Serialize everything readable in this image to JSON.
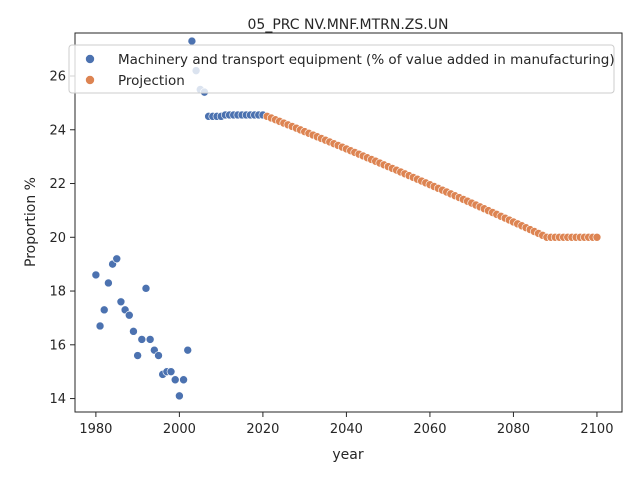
{
  "chart_data": {
    "type": "scatter",
    "title": "05_PRC NV.MNF.MTRN.ZS.UN",
    "xlabel": "year",
    "ylabel": "Proportion %",
    "xlim": [
      1975,
      2106
    ],
    "ylim": [
      13.5,
      27.6
    ],
    "xticks": [
      1980,
      2000,
      2020,
      2040,
      2060,
      2080,
      2100
    ],
    "yticks": [
      14,
      16,
      18,
      20,
      22,
      24,
      26
    ],
    "grid": false,
    "legend_position": "top-right",
    "series": [
      {
        "name": "Machinery and transport equipment (% of value added in manufacturing)",
        "color": "#4c72b0",
        "x": [
          1980,
          1981,
          1982,
          1983,
          1984,
          1985,
          1986,
          1987,
          1988,
          1989,
          1990,
          1991,
          1992,
          1993,
          1994,
          1995,
          1996,
          1997,
          1998,
          1999,
          2000,
          2001,
          2002,
          2003,
          2004,
          2005,
          2006,
          2007,
          2008,
          2009,
          2010,
          2011,
          2012,
          2013,
          2014,
          2015,
          2016,
          2017,
          2018,
          2019,
          2020
        ],
        "y": [
          18.6,
          16.7,
          17.3,
          18.3,
          19.0,
          19.2,
          17.6,
          17.3,
          17.1,
          16.5,
          15.6,
          16.2,
          18.1,
          16.2,
          15.8,
          15.6,
          14.9,
          15.0,
          15.0,
          14.7,
          14.1,
          14.7,
          15.8,
          27.3,
          26.2,
          25.5,
          25.4,
          24.5,
          24.5,
          24.5,
          24.5,
          24.55,
          24.55,
          24.55,
          24.55,
          24.55,
          24.55,
          24.55,
          24.55,
          24.55,
          24.55
        ]
      },
      {
        "name": "Projection",
        "color": "#dd8452",
        "x_start": 2021,
        "x_end": 2100,
        "y_start": 24.5,
        "plateau_from": 2088,
        "plateau_value": 20.0
      }
    ]
  }
}
